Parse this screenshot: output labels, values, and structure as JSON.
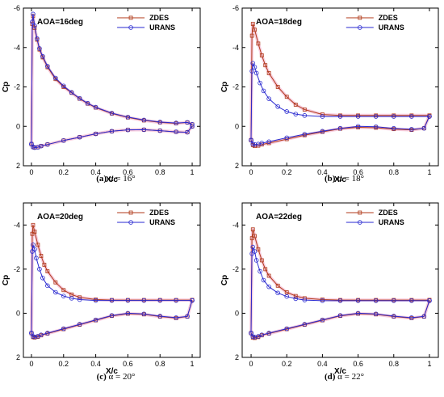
{
  "colors": {
    "zdes": "#b03a1a",
    "zdes_halo": "#f2a6c6",
    "urans": "#2a2ad0",
    "axis": "#000000"
  },
  "chart_data": [
    {
      "type": "line",
      "annotation": "AOA=16deg",
      "caption_letter": "(a)",
      "caption_rest": " α = 16°",
      "xlabel": "X/c",
      "ylabel": "Cp",
      "xlim": [
        -0.05,
        1.05
      ],
      "ylim": [
        2,
        -6
      ],
      "x_ticks": [
        "0",
        "0.2",
        "0.4",
        "0.6",
        "0.8",
        "1"
      ],
      "y_ticks": [
        "-6",
        "-4",
        "-2",
        "0",
        "2"
      ],
      "legend_position": "top-right",
      "series": [
        {
          "name": "ZDES",
          "upper": {
            "x": [
              0.0,
              0.005,
              0.01,
              0.02,
              0.035,
              0.05,
              0.07,
              0.1,
              0.15,
              0.2,
              0.25,
              0.3,
              0.35,
              0.4,
              0.5,
              0.6,
              0.7,
              0.8,
              0.9,
              0.97,
              1.0
            ],
            "y": [
              0.9,
              -5.2,
              -5.6,
              -5.0,
              -4.4,
              -3.9,
              -3.5,
              -3.0,
              -2.4,
              -2.0,
              -1.7,
              -1.4,
              -1.15,
              -0.95,
              -0.65,
              -0.45,
              -0.3,
              -0.2,
              -0.15,
              -0.2,
              -0.1
            ]
          },
          "lower": {
            "x": [
              0.0,
              0.01,
              0.02,
              0.04,
              0.06,
              0.1,
              0.2,
              0.3,
              0.4,
              0.5,
              0.6,
              0.7,
              0.8,
              0.9,
              0.97,
              1.0
            ],
            "y": [
              0.9,
              1.05,
              1.08,
              1.06,
              1.0,
              0.92,
              0.72,
              0.55,
              0.38,
              0.25,
              0.18,
              0.17,
              0.22,
              0.28,
              0.3,
              0.0
            ]
          }
        },
        {
          "name": "URANS",
          "upper": {
            "x": [
              0.0,
              0.005,
              0.01,
              0.02,
              0.035,
              0.05,
              0.07,
              0.1,
              0.15,
              0.2,
              0.25,
              0.3,
              0.35,
              0.4,
              0.5,
              0.6,
              0.7,
              0.8,
              0.9,
              0.97,
              1.0
            ],
            "y": [
              0.9,
              -5.3,
              -5.7,
              -5.1,
              -4.45,
              -3.95,
              -3.55,
              -3.05,
              -2.45,
              -2.05,
              -1.72,
              -1.42,
              -1.17,
              -0.97,
              -0.67,
              -0.47,
              -0.32,
              -0.22,
              -0.17,
              -0.2,
              -0.1
            ]
          },
          "lower": {
            "x": [
              0.0,
              0.01,
              0.02,
              0.04,
              0.06,
              0.1,
              0.2,
              0.3,
              0.4,
              0.5,
              0.6,
              0.7,
              0.8,
              0.9,
              0.97,
              1.0
            ],
            "y": [
              0.9,
              1.05,
              1.08,
              1.06,
              1.0,
              0.92,
              0.72,
              0.55,
              0.38,
              0.25,
              0.18,
              0.17,
              0.22,
              0.28,
              0.3,
              0.0
            ]
          }
        }
      ]
    },
    {
      "type": "line",
      "annotation": "AOA=18deg",
      "caption_letter": "(b)",
      "caption_rest": " α = 18°",
      "xlabel": "X/c",
      "ylabel": "Cp",
      "xlim": [
        -0.05,
        1.05
      ],
      "ylim": [
        2,
        -6
      ],
      "x_ticks": [
        "0",
        "0.2",
        "0.4",
        "0.6",
        "0.8",
        "1"
      ],
      "y_ticks": [
        "-6",
        "-4",
        "-2",
        "0",
        "2"
      ],
      "legend_position": "top-right",
      "series": [
        {
          "name": "ZDES",
          "upper": {
            "x": [
              0.0,
              0.005,
              0.01,
              0.02,
              0.04,
              0.06,
              0.08,
              0.1,
              0.15,
              0.2,
              0.25,
              0.3,
              0.4,
              0.5,
              0.6,
              0.7,
              0.8,
              0.9,
              1.0
            ],
            "y": [
              0.7,
              -4.6,
              -5.2,
              -4.9,
              -4.2,
              -3.6,
              -3.1,
              -2.7,
              -2.0,
              -1.5,
              -1.1,
              -0.85,
              -0.6,
              -0.55,
              -0.55,
              -0.55,
              -0.55,
              -0.55,
              -0.55
            ]
          },
          "lower": {
            "x": [
              0.0,
              0.01,
              0.02,
              0.04,
              0.06,
              0.1,
              0.2,
              0.3,
              0.4,
              0.5,
              0.6,
              0.7,
              0.8,
              0.9,
              0.97,
              1.0
            ],
            "y": [
              0.7,
              0.95,
              1.0,
              0.98,
              0.92,
              0.85,
              0.65,
              0.45,
              0.28,
              0.12,
              0.05,
              0.07,
              0.14,
              0.18,
              0.1,
              -0.55
            ]
          }
        },
        {
          "name": "URANS",
          "upper": {
            "x": [
              0.0,
              0.005,
              0.01,
              0.02,
              0.03,
              0.05,
              0.07,
              0.1,
              0.15,
              0.2,
              0.25,
              0.3,
              0.4,
              0.5,
              0.6,
              0.7,
              0.8,
              0.9,
              1.0
            ],
            "y": [
              0.7,
              -2.8,
              -3.2,
              -3.0,
              -2.7,
              -2.2,
              -1.8,
              -1.4,
              -1.0,
              -0.75,
              -0.62,
              -0.55,
              -0.5,
              -0.5,
              -0.5,
              -0.5,
              -0.5,
              -0.5,
              -0.5
            ]
          },
          "lower": {
            "x": [
              0.0,
              0.01,
              0.02,
              0.04,
              0.06,
              0.1,
              0.2,
              0.3,
              0.4,
              0.5,
              0.6,
              0.7,
              0.8,
              0.9,
              0.97,
              1.0
            ],
            "y": [
              0.7,
              0.9,
              0.92,
              0.9,
              0.85,
              0.78,
              0.58,
              0.4,
              0.25,
              0.1,
              0.0,
              0.02,
              0.1,
              0.15,
              0.1,
              -0.5
            ]
          }
        }
      ]
    },
    {
      "type": "line",
      "annotation": "AOA=20deg",
      "caption_letter": "(c)",
      "caption_rest": " α = 20°",
      "xlabel": "X/c",
      "ylabel": "Cp",
      "xlim": [
        -0.05,
        1.05
      ],
      "ylim": [
        2,
        -5
      ],
      "x_ticks": [
        "0",
        "0.2",
        "0.4",
        "0.6",
        "0.8",
        "1"
      ],
      "y_ticks": [
        "-4",
        "-2",
        "0",
        "2"
      ],
      "legend_position": "top-right",
      "series": [
        {
          "name": "ZDES",
          "upper": {
            "x": [
              0.0,
              0.005,
              0.01,
              0.02,
              0.04,
              0.06,
              0.08,
              0.1,
              0.15,
              0.2,
              0.25,
              0.3,
              0.4,
              0.5,
              0.6,
              0.7,
              0.8,
              0.9,
              1.0
            ],
            "y": [
              0.9,
              -3.6,
              -4.0,
              -3.7,
              -3.1,
              -2.6,
              -2.2,
              -1.9,
              -1.4,
              -1.05,
              -0.85,
              -0.72,
              -0.62,
              -0.6,
              -0.6,
              -0.6,
              -0.6,
              -0.6,
              -0.6
            ]
          },
          "lower": {
            "x": [
              0.0,
              0.01,
              0.02,
              0.04,
              0.06,
              0.1,
              0.2,
              0.3,
              0.4,
              0.5,
              0.6,
              0.7,
              0.8,
              0.9,
              0.97,
              1.0
            ],
            "y": [
              0.9,
              1.08,
              1.1,
              1.07,
              1.0,
              0.92,
              0.72,
              0.52,
              0.32,
              0.12,
              0.02,
              0.05,
              0.15,
              0.22,
              0.15,
              -0.6
            ]
          }
        },
        {
          "name": "URANS",
          "upper": {
            "x": [
              0.0,
              0.005,
              0.01,
              0.02,
              0.03,
              0.05,
              0.07,
              0.1,
              0.15,
              0.2,
              0.25,
              0.3,
              0.4,
              0.5,
              0.6,
              0.7,
              0.8,
              0.9,
              1.0
            ],
            "y": [
              0.9,
              -2.8,
              -3.1,
              -2.9,
              -2.5,
              -2.0,
              -1.6,
              -1.25,
              -0.95,
              -0.78,
              -0.68,
              -0.62,
              -0.58,
              -0.58,
              -0.58,
              -0.58,
              -0.58,
              -0.58,
              -0.58
            ]
          },
          "lower": {
            "x": [
              0.0,
              0.01,
              0.02,
              0.04,
              0.06,
              0.1,
              0.2,
              0.3,
              0.4,
              0.5,
              0.6,
              0.7,
              0.8,
              0.9,
              0.97,
              1.0
            ],
            "y": [
              0.9,
              1.05,
              1.07,
              1.04,
              0.98,
              0.9,
              0.7,
              0.5,
              0.3,
              0.1,
              0.0,
              0.03,
              0.13,
              0.2,
              0.14,
              -0.58
            ]
          }
        }
      ]
    },
    {
      "type": "line",
      "annotation": "AOA=22deg",
      "caption_letter": "(d)",
      "caption_rest": " α = 22°",
      "xlabel": "X/c",
      "ylabel": "Cp",
      "xlim": [
        -0.05,
        1.05
      ],
      "ylim": [
        2,
        -5
      ],
      "x_ticks": [
        "0",
        "0.2",
        "0.4",
        "0.6",
        "0.8",
        "1"
      ],
      "y_ticks": [
        "-4",
        "-2",
        "0",
        "2"
      ],
      "legend_position": "top-right",
      "series": [
        {
          "name": "ZDES",
          "upper": {
            "x": [
              0.0,
              0.005,
              0.01,
              0.02,
              0.04,
              0.06,
              0.08,
              0.1,
              0.15,
              0.2,
              0.25,
              0.3,
              0.4,
              0.5,
              0.6,
              0.7,
              0.8,
              0.9,
              1.0
            ],
            "y": [
              0.9,
              -3.4,
              -3.8,
              -3.5,
              -2.9,
              -2.4,
              -2.0,
              -1.7,
              -1.25,
              -0.95,
              -0.78,
              -0.68,
              -0.62,
              -0.6,
              -0.6,
              -0.6,
              -0.6,
              -0.6,
              -0.6
            ]
          },
          "lower": {
            "x": [
              0.0,
              0.01,
              0.02,
              0.04,
              0.06,
              0.1,
              0.2,
              0.3,
              0.4,
              0.5,
              0.6,
              0.7,
              0.8,
              0.9,
              0.97,
              1.0
            ],
            "y": [
              0.9,
              1.1,
              1.12,
              1.08,
              1.0,
              0.92,
              0.72,
              0.52,
              0.32,
              0.12,
              0.02,
              0.05,
              0.15,
              0.22,
              0.15,
              -0.6
            ]
          }
        },
        {
          "name": "URANS",
          "upper": {
            "x": [
              0.0,
              0.005,
              0.01,
              0.02,
              0.03,
              0.05,
              0.07,
              0.1,
              0.15,
              0.2,
              0.25,
              0.3,
              0.4,
              0.5,
              0.6,
              0.7,
              0.8,
              0.9,
              1.0
            ],
            "y": [
              0.9,
              -2.7,
              -3.0,
              -2.8,
              -2.4,
              -1.9,
              -1.5,
              -1.2,
              -0.92,
              -0.76,
              -0.66,
              -0.6,
              -0.57,
              -0.57,
              -0.57,
              -0.57,
              -0.57,
              -0.57,
              -0.57
            ]
          },
          "lower": {
            "x": [
              0.0,
              0.01,
              0.02,
              0.04,
              0.06,
              0.1,
              0.2,
              0.3,
              0.4,
              0.5,
              0.6,
              0.7,
              0.8,
              0.9,
              0.97,
              1.0
            ],
            "y": [
              0.9,
              1.06,
              1.08,
              1.05,
              0.98,
              0.9,
              0.7,
              0.5,
              0.3,
              0.1,
              0.0,
              0.03,
              0.13,
              0.2,
              0.14,
              -0.57
            ]
          }
        }
      ]
    }
  ]
}
